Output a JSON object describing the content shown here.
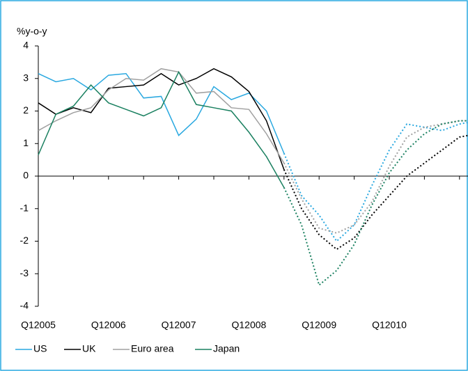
{
  "chart_data": {
    "type": "line",
    "y_label": "%y-o-y",
    "categories": [
      "Q12005",
      null,
      null,
      null,
      "Q12006",
      null,
      null,
      null,
      "Q12007",
      null,
      null,
      null,
      "Q12008",
      null,
      null,
      null,
      "Q12009",
      null,
      null,
      null,
      "Q12010",
      null,
      null,
      null,
      null,
      null
    ],
    "ylim": [
      -4,
      4
    ],
    "yticks": [
      4,
      3,
      2,
      1,
      0,
      -1,
      -2,
      -3,
      -4
    ],
    "series": [
      {
        "name": "US",
        "color": "#29a8e0",
        "values": [
          3.15,
          2.9,
          3.0,
          2.65,
          3.1,
          3.15,
          2.4,
          2.45,
          1.25,
          1.75,
          2.75,
          2.35,
          2.55,
          2.0,
          0.7,
          null,
          null,
          null,
          null,
          null,
          null,
          null,
          null,
          null,
          null,
          null
        ],
        "forecast": [
          null,
          null,
          null,
          null,
          null,
          null,
          null,
          null,
          null,
          null,
          null,
          null,
          null,
          null,
          0.7,
          -0.6,
          -1.2,
          -2.0,
          -1.5,
          -0.3,
          0.8,
          1.6,
          1.5,
          1.4,
          1.6,
          1.7
        ]
      },
      {
        "name": "UK",
        "color": "#000000",
        "values": [
          2.25,
          1.9,
          2.1,
          1.95,
          2.7,
          2.75,
          2.8,
          3.15,
          2.8,
          3.0,
          3.3,
          3.05,
          2.6,
          1.7,
          0.2,
          null,
          null,
          null,
          null,
          null,
          null,
          null,
          null,
          null,
          null,
          null
        ],
        "forecast": [
          null,
          null,
          null,
          null,
          null,
          null,
          null,
          null,
          null,
          null,
          null,
          null,
          null,
          null,
          0.2,
          -1.0,
          -1.8,
          -2.25,
          -1.9,
          -1.2,
          -0.6,
          0.0,
          0.4,
          0.8,
          1.2,
          1.3
        ]
      },
      {
        "name": "Euro area",
        "color": "#a0a0a0",
        "values": [
          1.4,
          1.7,
          1.95,
          2.1,
          2.65,
          3.0,
          2.95,
          3.3,
          3.2,
          2.55,
          2.6,
          2.1,
          2.05,
          1.3,
          0.4,
          null,
          null,
          null,
          null,
          null,
          null,
          null,
          null,
          null,
          null,
          null
        ],
        "forecast": [
          null,
          null,
          null,
          null,
          null,
          null,
          null,
          null,
          null,
          null,
          null,
          null,
          null,
          null,
          0.4,
          -0.7,
          -1.6,
          -1.75,
          -1.5,
          -0.8,
          0.3,
          1.2,
          1.5,
          1.6,
          1.7,
          1.7
        ]
      },
      {
        "name": "Japan",
        "color": "#1a8060",
        "values": [
          0.65,
          1.9,
          2.15,
          2.8,
          2.25,
          2.05,
          1.85,
          2.1,
          3.2,
          2.2,
          2.1,
          2.0,
          1.35,
          0.6,
          -0.35,
          null,
          null,
          null,
          null,
          null,
          null,
          null,
          null,
          null,
          null,
          null
        ],
        "forecast": [
          null,
          null,
          null,
          null,
          null,
          null,
          null,
          null,
          null,
          null,
          null,
          null,
          null,
          null,
          -0.35,
          -1.5,
          -3.35,
          -2.9,
          -2.1,
          -0.9,
          0.1,
          0.8,
          1.3,
          1.6,
          1.7,
          1.7
        ]
      }
    ]
  }
}
